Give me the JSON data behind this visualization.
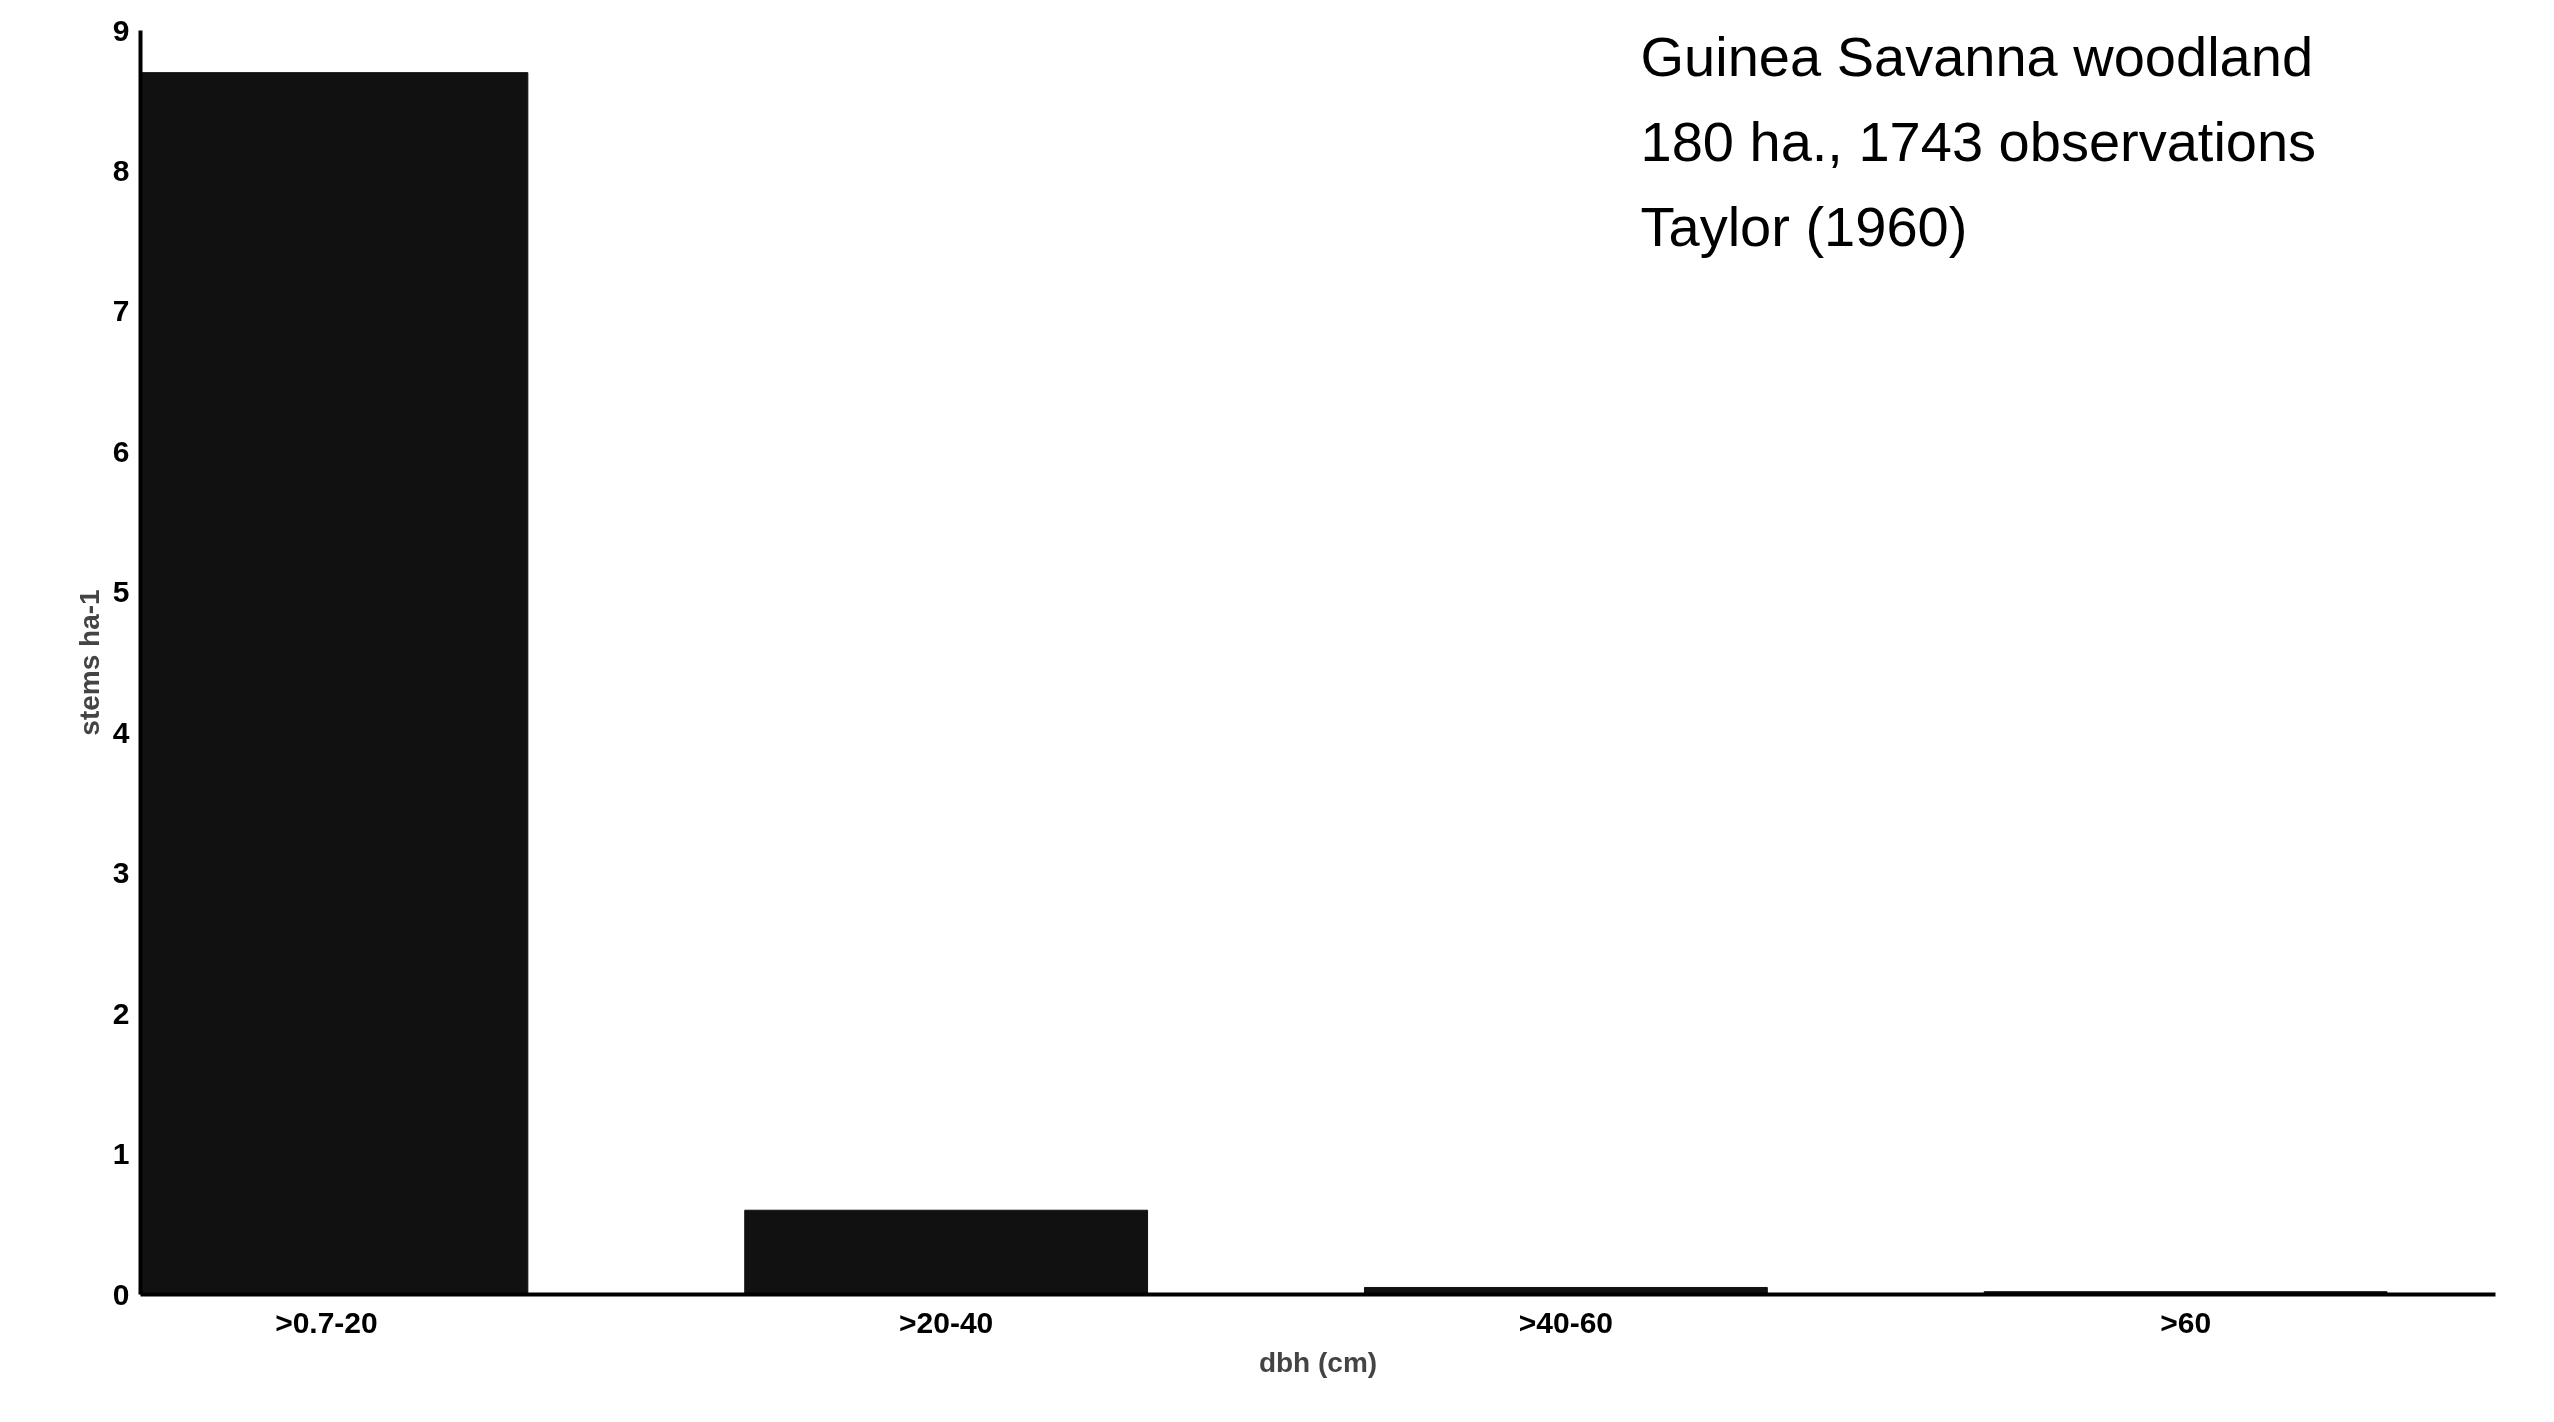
{
  "chart_data": {
    "type": "bar",
    "title": "Guinea Savanna woodland",
    "annotations": [
      "180 ha., 1743 observations",
      "Taylor (1960)"
    ],
    "xlabel": "dbh (cm)",
    "ylabel": "stems ha-1",
    "categories": [
      ">0.7-20",
      ">20-40",
      ">40-60",
      ">60"
    ],
    "values": [
      8.7,
      0.6,
      0.05,
      0.02
    ],
    "color": "#111111",
    "ylim": [
      0,
      9
    ],
    "yticks": [
      0,
      1,
      2,
      3,
      4,
      5,
      6,
      7,
      8,
      9
    ],
    "grid": false
  }
}
